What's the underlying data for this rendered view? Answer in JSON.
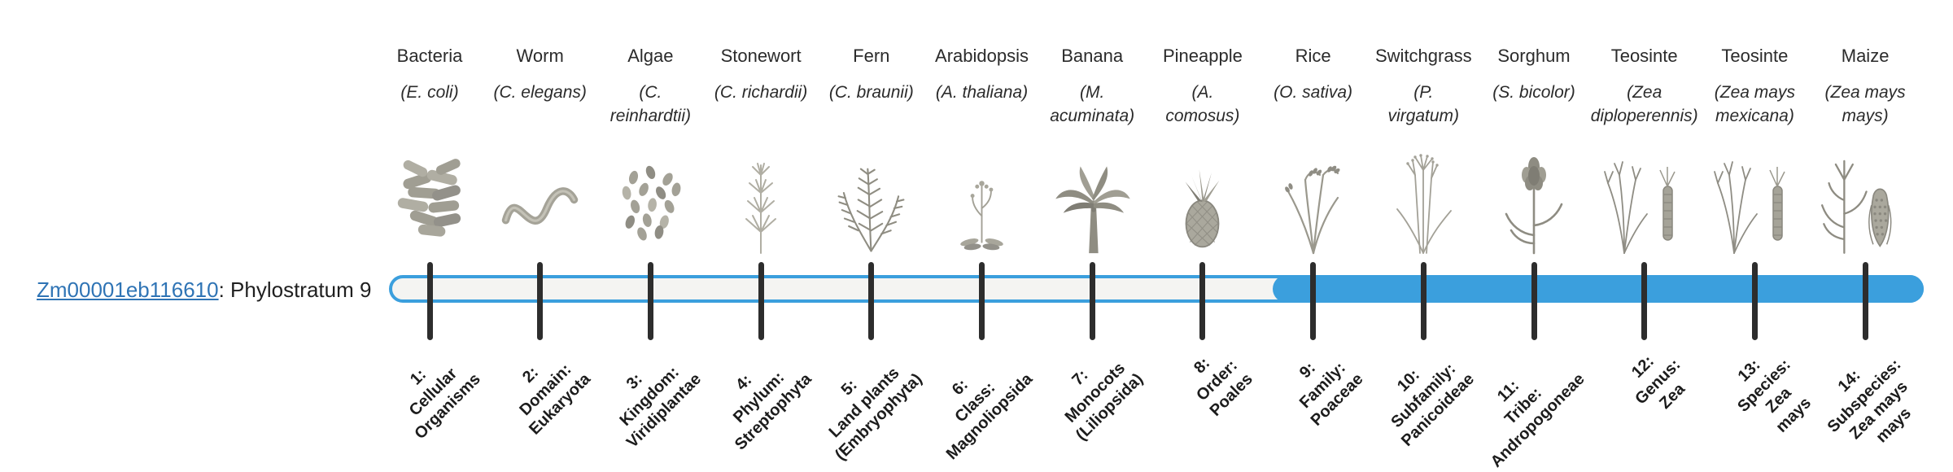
{
  "gene": {
    "id": "Zm00001eb116610",
    "suffix": ": Phylostratum 9",
    "phylostratum": 9
  },
  "colors": {
    "bar_fill": "#3b9fdd",
    "bar_track": "#f4f4f2",
    "tick": "#2d2d2d",
    "link": "#2f74b5",
    "text": "#2b2b2b"
  },
  "organisms": [
    {
      "name": "Bacteria",
      "sci_lines": [
        "(E. coli)"
      ],
      "icon": "bacteria-icon"
    },
    {
      "name": "Worm",
      "sci_lines": [
        "(C. elegans)"
      ],
      "icon": "worm-icon"
    },
    {
      "name": "Algae",
      "sci_lines": [
        "(C.",
        "reinhardtii)"
      ],
      "icon": "algae-icon"
    },
    {
      "name": "Stonewort",
      "sci_lines": [
        "(C. richardii)"
      ],
      "icon": "stonewort-icon"
    },
    {
      "name": "Fern",
      "sci_lines": [
        "(C. braunii)"
      ],
      "icon": "fern-icon"
    },
    {
      "name": "Arabidopsis",
      "sci_lines": [
        "(A. thaliana)"
      ],
      "icon": "arabidopsis-icon"
    },
    {
      "name": "Banana",
      "sci_lines": [
        "(M.",
        "acuminata)"
      ],
      "icon": "banana-icon"
    },
    {
      "name": "Pineapple",
      "sci_lines": [
        "(A.",
        "comosus)"
      ],
      "icon": "pineapple-icon"
    },
    {
      "name": "Rice",
      "sci_lines": [
        "(O. sativa)"
      ],
      "icon": "rice-icon"
    },
    {
      "name": "Switchgrass",
      "sci_lines": [
        "(P.",
        "virgatum)"
      ],
      "icon": "switchgrass-icon"
    },
    {
      "name": "Sorghum",
      "sci_lines": [
        "(S. bicolor)"
      ],
      "icon": "sorghum-icon"
    },
    {
      "name": "Teosinte",
      "sci_lines": [
        "(Zea",
        "diploperennis)"
      ],
      "icon": "teosinte-diploperennis-icon"
    },
    {
      "name": "Teosinte",
      "sci_lines": [
        "(Zea mays",
        "mexicana)"
      ],
      "icon": "teosinte-mexicana-icon"
    },
    {
      "name": "Maize",
      "sci_lines": [
        "(Zea mays",
        "mays)"
      ],
      "icon": "maize-icon"
    }
  ],
  "phylostrata": [
    {
      "lines": [
        "1:",
        "Cellular",
        "Organisms"
      ]
    },
    {
      "lines": [
        "2:",
        "Domain:",
        "Eukaryota"
      ]
    },
    {
      "lines": [
        "3:",
        "Kingdom:",
        "Viridiplantae"
      ]
    },
    {
      "lines": [
        "4:",
        "Phylum:",
        "Streptophyta"
      ]
    },
    {
      "lines": [
        "5:",
        "Land plants",
        "(Embryophyta)"
      ]
    },
    {
      "lines": [
        "6:",
        "Class:",
        "Magnoliopsida"
      ]
    },
    {
      "lines": [
        "7:",
        "Monocots",
        "(Liliopsida)"
      ]
    },
    {
      "lines": [
        "8:",
        "Order:",
        "Poales"
      ]
    },
    {
      "lines": [
        "9:",
        "Family:",
        "Poaceae"
      ]
    },
    {
      "lines": [
        "10:",
        "Subfamily:",
        "Panicoideae"
      ]
    },
    {
      "lines": [
        "11:",
        "Tribe:",
        "Andropogoneae"
      ]
    },
    {
      "lines": [
        "12:",
        "Genus:",
        "Zea"
      ]
    },
    {
      "lines": [
        "13:",
        "Species:",
        "Zea",
        "mays"
      ]
    },
    {
      "lines": [
        "14:",
        "Subspecies:",
        "Zea mays",
        "mays"
      ]
    }
  ]
}
